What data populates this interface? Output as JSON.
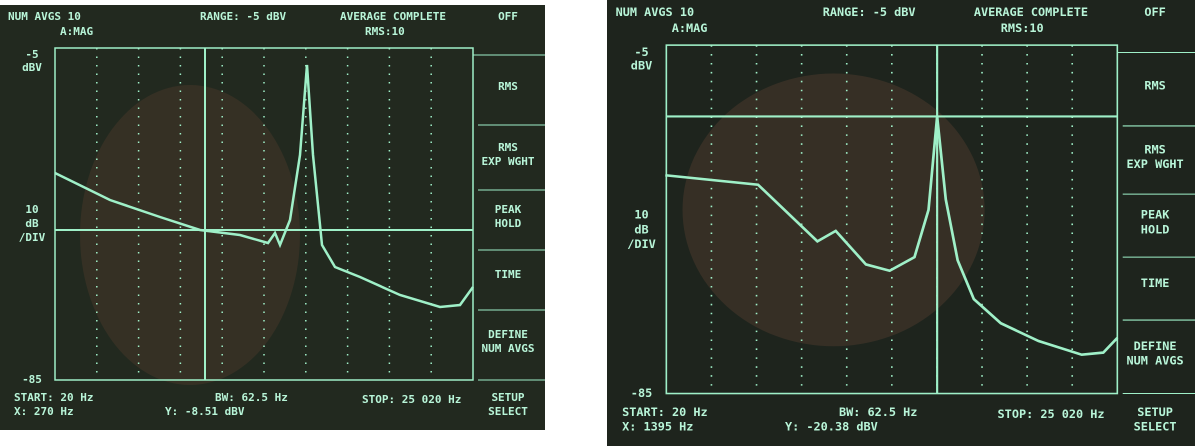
{
  "screens": [
    {
      "header": {
        "num_avgs": "NUM AVGS 10",
        "mode": "A:MAG",
        "range": "RANGE: -5 dBV",
        "status": "AVERAGE COMPLETE",
        "rms": "RMS:10",
        "off": "OFF"
      },
      "scale": {
        "top": "-5",
        "top_unit": "dBV",
        "div": [
          "10",
          "dB",
          "/DIV"
        ],
        "bottom": "-85"
      },
      "softkeys": [
        [
          "RMS"
        ],
        [
          "RMS",
          "EXP WGHT"
        ],
        [
          "PEAK",
          "HOLD"
        ],
        [
          "TIME"
        ],
        [
          "DEFINE",
          "NUM AVGS"
        ],
        [
          "SETUP",
          "SELECT"
        ]
      ],
      "footer": {
        "start": "START: 20 Hz",
        "x": "X: 270 Hz",
        "bw": "BW: 62.5 Hz",
        "y": "Y: -8.51 dBV",
        "stop": "STOP: 25 020 Hz"
      }
    },
    {
      "header": {
        "num_avgs": "NUM AVGS 10",
        "mode": "A:MAG",
        "range": "RANGE: -5 dBV",
        "status": "AVERAGE COMPLETE",
        "rms": "RMS:10",
        "off": "OFF"
      },
      "scale": {
        "top": "-5",
        "top_unit": "dBV",
        "div": [
          "10",
          "dB",
          "/DIV"
        ],
        "bottom": "-85"
      },
      "softkeys": [
        [
          "RMS"
        ],
        [
          "RMS",
          "EXP WGHT"
        ],
        [
          "PEAK",
          "HOLD"
        ],
        [
          "TIME"
        ],
        [
          "DEFINE",
          "NUM AVGS"
        ],
        [
          "SETUP",
          "SELECT"
        ]
      ],
      "footer": {
        "start": "START: 20 Hz",
        "x": "X: 1395 Hz",
        "bw": "BW: 62.5 Hz",
        "y": "Y: -20.38 dBV",
        "stop": "STOP: 25 020 Hz"
      }
    }
  ]
}
